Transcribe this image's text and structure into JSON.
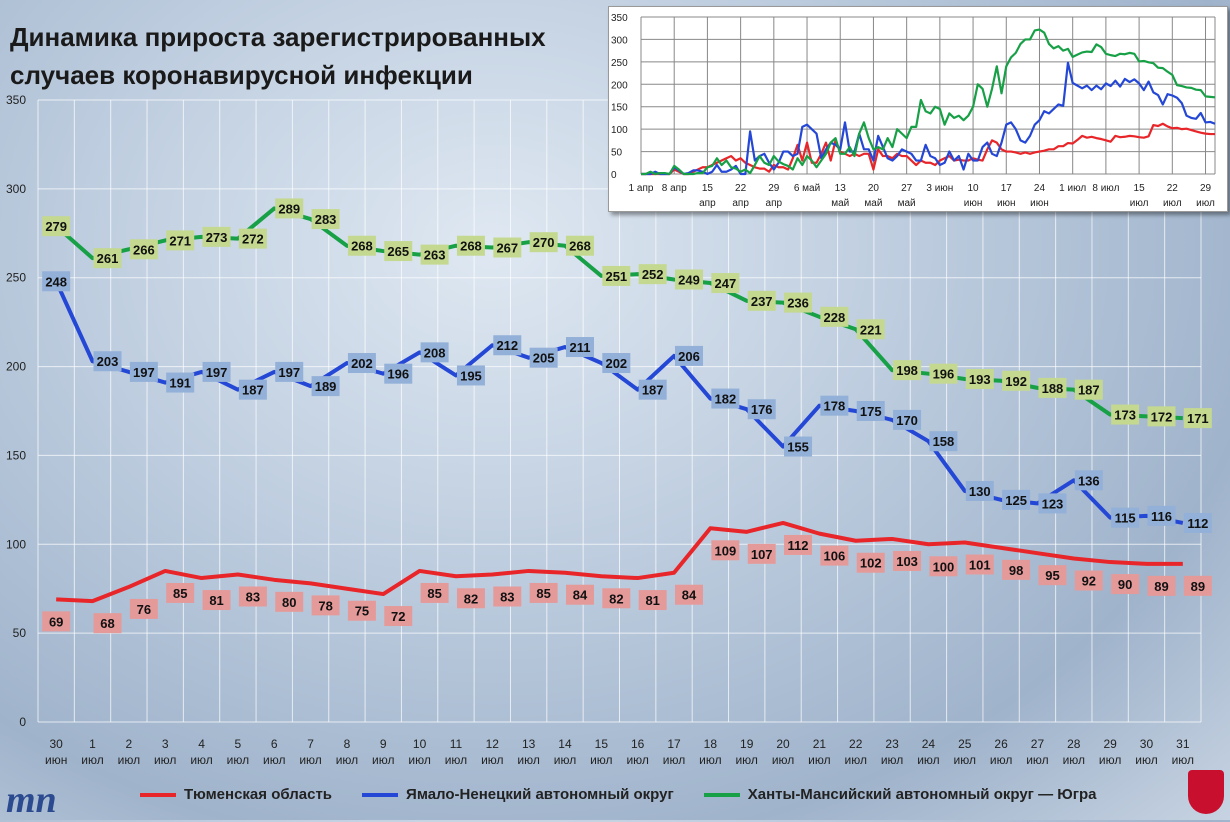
{
  "title_lines": [
    "Динамика прироста зарегистрированных",
    "случаев коронавирусной инфекции"
  ],
  "logo_text": "тп",
  "chart_data": [
    {
      "type": "line",
      "ylim": [
        0,
        350
      ],
      "yticks": [
        0,
        50,
        100,
        150,
        200,
        250,
        300,
        350
      ],
      "grid": true,
      "legend_placement": "bottom",
      "categories": [
        {
          "day": "30",
          "month": "июн"
        },
        {
          "day": "1",
          "month": "июл"
        },
        {
          "day": "2",
          "month": "июл"
        },
        {
          "day": "3",
          "month": "июл"
        },
        {
          "day": "4",
          "month": "июл"
        },
        {
          "day": "5",
          "month": "июл"
        },
        {
          "day": "6",
          "month": "июл"
        },
        {
          "day": "7",
          "month": "июл"
        },
        {
          "day": "8",
          "month": "июл"
        },
        {
          "day": "9",
          "month": "июл"
        },
        {
          "day": "10",
          "month": "июл"
        },
        {
          "day": "11",
          "month": "июл"
        },
        {
          "day": "12",
          "month": "июл"
        },
        {
          "day": "13",
          "month": "июл"
        },
        {
          "day": "14",
          "month": "июл"
        },
        {
          "day": "15",
          "month": "июл"
        },
        {
          "day": "16",
          "month": "июл"
        },
        {
          "day": "17",
          "month": "июл"
        },
        {
          "day": "18",
          "month": "июл"
        },
        {
          "day": "19",
          "month": "июл"
        },
        {
          "day": "20",
          "month": "июл"
        },
        {
          "day": "21",
          "month": "июл"
        },
        {
          "day": "22",
          "month": "июл"
        },
        {
          "day": "23",
          "month": "июл"
        },
        {
          "day": "24",
          "month": "июл"
        },
        {
          "day": "25",
          "month": "июл"
        },
        {
          "day": "26",
          "month": "июл"
        },
        {
          "day": "27",
          "month": "июл"
        },
        {
          "day": "28",
          "month": "июл"
        },
        {
          "day": "29",
          "month": "июл"
        },
        {
          "day": "30",
          "month": "июл"
        },
        {
          "day": "31",
          "month": "июл"
        }
      ],
      "series": [
        {
          "name": "Тюменская область",
          "color": "#e8262a",
          "label_bg": "#e59a9a",
          "values": [
            69,
            68,
            76,
            85,
            81,
            83,
            80,
            78,
            75,
            72,
            85,
            82,
            83,
            85,
            84,
            82,
            81,
            84,
            109,
            107,
            112,
            106,
            102,
            103,
            100,
            101,
            98,
            95,
            92,
            90,
            89,
            89
          ]
        },
        {
          "name": "Ямало-Ненецкий автономный округ",
          "color": "#2447d6",
          "label_bg": "#93b0d8",
          "values": [
            248,
            203,
            197,
            191,
            197,
            187,
            197,
            189,
            202,
            196,
            208,
            195,
            212,
            205,
            211,
            202,
            187,
            206,
            182,
            176,
            155,
            178,
            175,
            170,
            158,
            130,
            125,
            123,
            136,
            115,
            116,
            112
          ]
        },
        {
          "name": "Ханты-Мансийский автономный округ — Югра",
          "color": "#17a046",
          "label_bg": "#c4d98f",
          "values": [
            279,
            261,
            266,
            271,
            273,
            272,
            289,
            283,
            268,
            265,
            263,
            268,
            267,
            270,
            268,
            251,
            252,
            249,
            247,
            237,
            236,
            228,
            221,
            198,
            196,
            193,
            192,
            188,
            187,
            173,
            172,
            171
          ]
        }
      ]
    },
    {
      "type": "line",
      "ylim": [
        0,
        350
      ],
      "yticks": [
        0,
        50,
        100,
        150,
        200,
        250,
        300,
        350
      ],
      "grid": true,
      "x_range": [
        "1 апр",
        "31 июл"
      ],
      "xticks": [
        [
          "1 апр",
          ""
        ],
        [
          "8 апр",
          ""
        ],
        [
          "15",
          "апр"
        ],
        [
          "22",
          "апр"
        ],
        [
          "29",
          "апр"
        ],
        [
          "6 май",
          ""
        ],
        [
          "13",
          "май"
        ],
        [
          "20",
          "май"
        ],
        [
          "27",
          "май"
        ],
        [
          "3 июн",
          ""
        ],
        [
          "10",
          "июн"
        ],
        [
          "17",
          "июн"
        ],
        [
          "24",
          "июн"
        ],
        [
          "1 июл",
          ""
        ],
        [
          "8 июл",
          ""
        ],
        [
          "15",
          "июл"
        ],
        [
          "22",
          "июл"
        ],
        [
          "29",
          "июл"
        ]
      ],
      "series": [
        {
          "color": "#e8262a",
          "values": [
            0,
            0,
            0,
            0,
            0,
            0,
            0,
            10,
            5,
            0,
            0,
            5,
            10,
            15,
            15,
            20,
            25,
            30,
            35,
            40,
            30,
            35,
            25,
            20,
            15,
            12,
            12,
            5,
            20,
            15,
            15,
            10,
            35,
            65,
            30,
            70,
            25,
            25,
            45,
            70,
            30,
            75,
            50,
            45,
            40,
            45,
            40,
            45,
            45,
            10,
            55,
            40,
            40,
            35,
            45,
            40,
            40,
            30,
            20,
            30,
            25,
            25,
            20,
            30,
            35,
            40,
            30,
            32,
            30,
            30,
            35,
            32,
            30,
            55,
            75,
            70,
            55,
            50,
            50,
            48,
            45,
            48,
            45,
            48,
            50,
            52,
            55,
            55,
            62,
            62,
            69,
            68,
            76,
            85,
            81,
            83,
            80,
            78,
            75,
            72,
            85,
            82,
            83,
            85,
            84,
            82,
            81,
            84,
            109,
            107,
            112,
            106,
            102,
            103,
            100,
            101,
            98,
            95,
            92,
            90,
            89,
            89
          ]
        },
        {
          "color": "#2447d6",
          "values": [
            0,
            0,
            0,
            5,
            0,
            0,
            0,
            15,
            8,
            0,
            2,
            8,
            8,
            5,
            0,
            5,
            20,
            5,
            5,
            10,
            18,
            0,
            0,
            95,
            30,
            40,
            45,
            25,
            10,
            25,
            50,
            50,
            40,
            45,
            105,
            110,
            100,
            90,
            35,
            55,
            70,
            65,
            55,
            115,
            50,
            50,
            90,
            55,
            55,
            30,
            85,
            60,
            35,
            30,
            40,
            55,
            50,
            45,
            30,
            30,
            65,
            40,
            35,
            20,
            25,
            50,
            30,
            40,
            10,
            45,
            30,
            30,
            60,
            70,
            45,
            40,
            70,
            110,
            115,
            100,
            75,
            70,
            85,
            110,
            120,
            140,
            135,
            145,
            155,
            152,
            248,
            203,
            197,
            191,
            197,
            187,
            197,
            189,
            202,
            196,
            208,
            195,
            212,
            205,
            211,
            202,
            187,
            206,
            182,
            176,
            155,
            178,
            175,
            170,
            158,
            130,
            125,
            123,
            136,
            115,
            116,
            112
          ]
        },
        {
          "color": "#17a046",
          "values": [
            0,
            0,
            5,
            0,
            2,
            2,
            0,
            18,
            10,
            0,
            0,
            0,
            2,
            2,
            15,
            18,
            35,
            20,
            30,
            15,
            12,
            5,
            10,
            2,
            20,
            40,
            25,
            20,
            40,
            28,
            22,
            18,
            10,
            35,
            20,
            40,
            30,
            15,
            30,
            45,
            70,
            80,
            45,
            45,
            60,
            40,
            90,
            115,
            80,
            55,
            60,
            55,
            80,
            60,
            100,
            90,
            80,
            105,
            105,
            165,
            140,
            135,
            150,
            145,
            110,
            135,
            125,
            130,
            120,
            130,
            150,
            200,
            190,
            150,
            190,
            240,
            180,
            240,
            260,
            270,
            290,
            300,
            300,
            320,
            322,
            315,
            290,
            280,
            285,
            275,
            279,
            261,
            266,
            271,
            273,
            272,
            289,
            283,
            268,
            265,
            263,
            268,
            267,
            270,
            268,
            251,
            252,
            249,
            247,
            237,
            236,
            228,
            221,
            198,
            196,
            193,
            192,
            188,
            187,
            173,
            172,
            171
          ]
        }
      ]
    }
  ]
}
